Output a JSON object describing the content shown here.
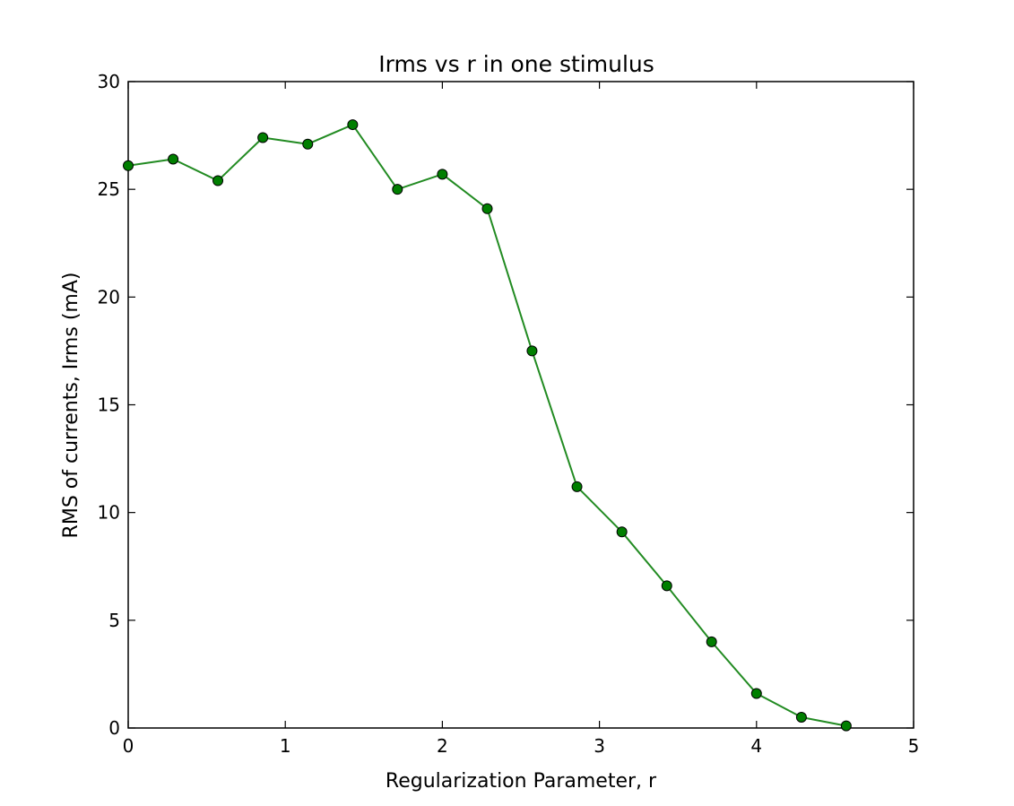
{
  "chart_data": {
    "type": "line",
    "title": "Irms vs r in one stimulus",
    "xlabel": "Regularization Parameter, r",
    "ylabel": "RMS of currents, Irms (mA)",
    "xlim": [
      0,
      5
    ],
    "ylim": [
      0,
      30
    ],
    "xticks": [
      0,
      1,
      2,
      3,
      4,
      5
    ],
    "yticks": [
      0,
      5,
      10,
      15,
      20,
      25,
      30
    ],
    "xtick_labels": [
      "0",
      "1",
      "2",
      "3",
      "4",
      "5"
    ],
    "ytick_labels": [
      "0",
      "5",
      "10",
      "15",
      "20",
      "25",
      "30"
    ],
    "grid": false,
    "legend": "none",
    "series": [
      {
        "color": "#228b22",
        "marker_color": "#007f00",
        "x": [
          0,
          0.286,
          0.571,
          0.857,
          1.143,
          1.429,
          1.714,
          2.0,
          2.286,
          2.571,
          2.857,
          3.143,
          3.429,
          3.714,
          4.0,
          4.286,
          4.571
        ],
        "y": [
          26.1,
          26.4,
          25.4,
          27.4,
          27.1,
          28.0,
          25.0,
          25.7,
          24.1,
          17.5,
          11.2,
          9.1,
          6.6,
          4.0,
          1.6,
          0.5,
          0.1
        ]
      }
    ]
  }
}
